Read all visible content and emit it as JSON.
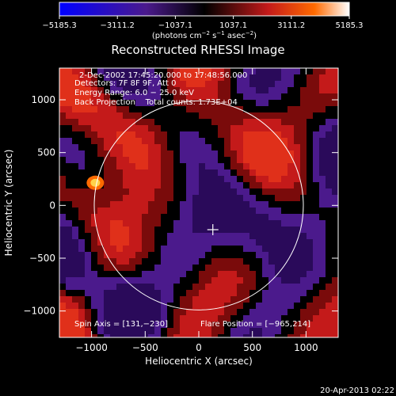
{
  "chart_data": {
    "type": "heatmap",
    "title": "Reconstructed RHESSI Image",
    "colorbar": {
      "tick_labels": [
        "−5185.3",
        "−3111.2",
        "−1037.1",
        "1037.1",
        "3111.2",
        "5185.3"
      ],
      "range": [
        -5185.3,
        5185.3
      ],
      "unit_prefix": "(photons cm",
      "unit_exp1": "−2",
      "unit_mid": " s",
      "unit_exp2": "−1",
      "unit_mid2": " asec",
      "unit_exp3": "−2",
      "unit_suffix": ")",
      "colors": [
        "#0000ff",
        "#4b1a8c",
        "#000000",
        "#c41a1a",
        "#ff6a00",
        "#ffffff"
      ]
    },
    "xlabel": "Heliocentric X (arcsec)",
    "ylabel": "Heliocentric Y (arcsec)",
    "xlim": [
      -1300,
      1300
    ],
    "ylim": [
      -1250,
      1300
    ],
    "x_ticks": [
      -1000,
      -500,
      0,
      500,
      1000
    ],
    "x_tick_labels": [
      "−1000",
      "−500",
      "0",
      "500",
      "1000"
    ],
    "y_ticks": [
      1000,
      500,
      0,
      -500,
      -1000
    ],
    "y_tick_labels": [
      "1000",
      "500",
      "0",
      "−500",
      "−1000"
    ],
    "info_lines": [
      "2-Dec-2002 17:45:20.000 to 17:48:56.000",
      "Detectors: 7F 8F 9F, Att 0",
      "Energy Range: 6.0 − 25.0 keV",
      "Back Projection    Total counts: 1.73E+04"
    ],
    "spin_axis_text": "Spin Axis = [131,−230]",
    "flare_position_text": "Flare Position = [−965,214]",
    "solar_disk_radius_arcsec": 975,
    "spin_axis": [
      131,
      -230
    ],
    "flare_position": [
      -965,
      214
    ],
    "date_stamp": "20-Apr-2013 02:22"
  }
}
